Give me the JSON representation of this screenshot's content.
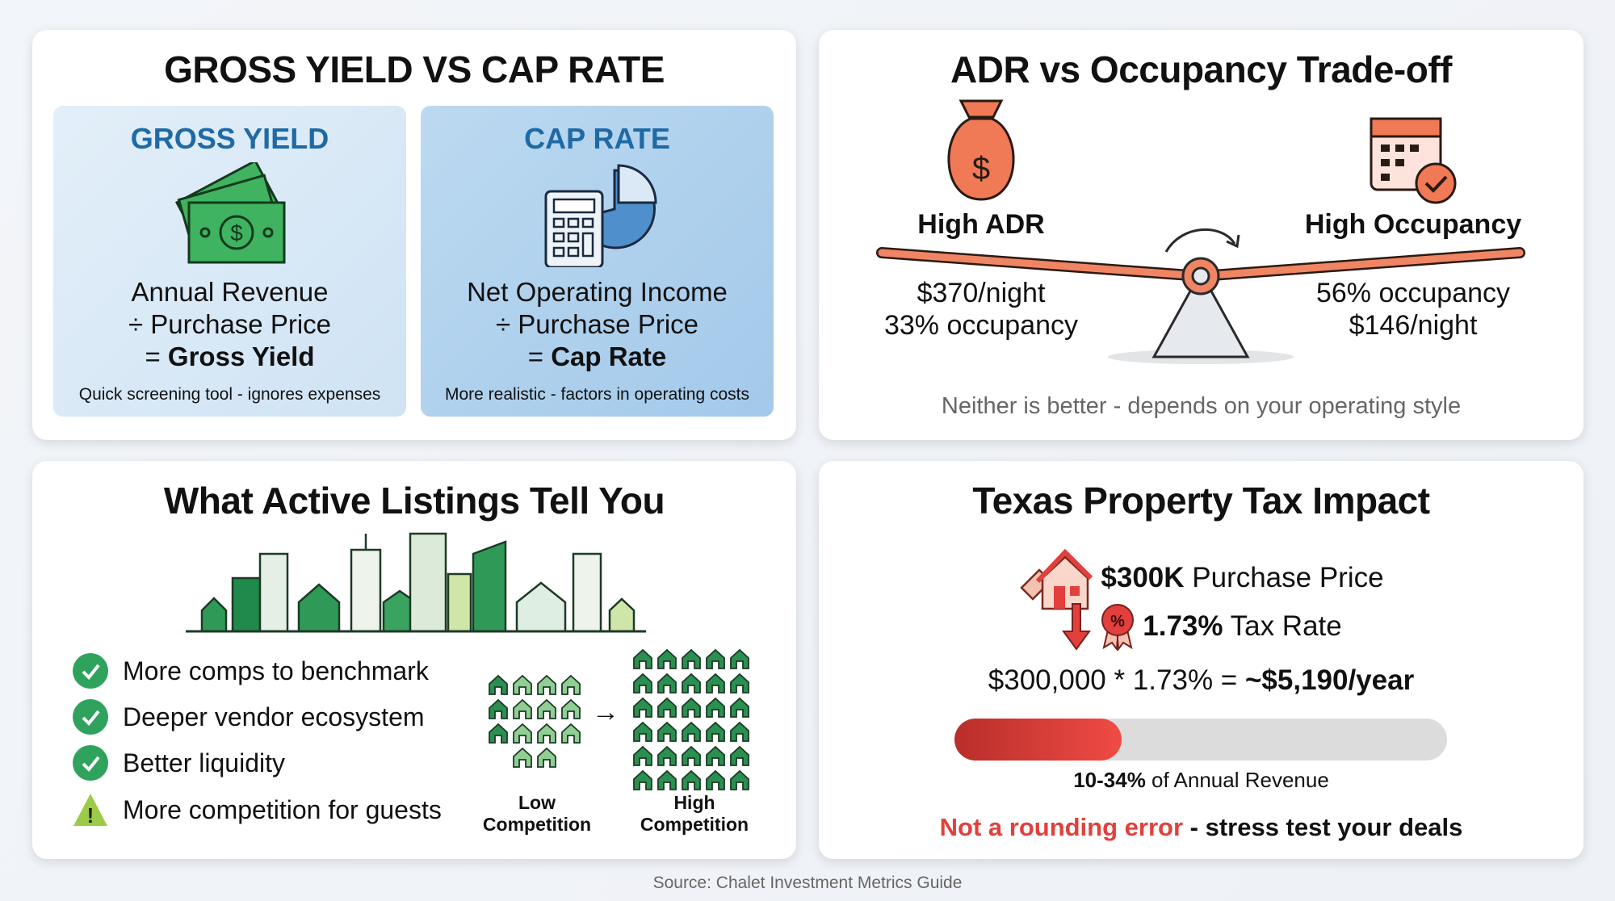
{
  "card1": {
    "title": "GROSS YIELD VS CAP RATE",
    "gross": {
      "heading": "GROSS YIELD",
      "line1": "Annual Revenue",
      "line2": "÷ Purchase Price",
      "line3_prefix": "= ",
      "line3_bold": "Gross Yield",
      "note": "Quick screening tool - ignores expenses",
      "icon": "money-bills-icon"
    },
    "cap": {
      "heading": "CAP RATE",
      "line1": "Net Operating Income",
      "line2": "÷ Purchase Price",
      "line3_prefix": "= ",
      "line3_bold": "Cap Rate",
      "note": "More realistic - factors in operating costs",
      "icon": "calculator-pie-chart-icon"
    }
  },
  "card2": {
    "title": "ADR vs Occupancy Trade-off",
    "left": {
      "label": "High ADR",
      "line1": "$370/night",
      "line2": "33% occupancy",
      "icon": "money-bag-icon"
    },
    "right": {
      "label": "High Occupancy",
      "line1": "56% occupancy",
      "line2": "$146/night",
      "icon": "calendar-check-icon"
    },
    "footer": "Neither is better - depends on your operating style"
  },
  "card3": {
    "title": "What Active Listings Tell You",
    "items": [
      {
        "text": "More comps to benchmark",
        "icon": "check-icon"
      },
      {
        "text": "Deeper vendor ecosystem",
        "icon": "check-icon"
      },
      {
        "text": "Better liquidity",
        "icon": "check-icon"
      },
      {
        "text": "More competition for guests",
        "icon": "warning-icon"
      }
    ],
    "low_label_1": "Low",
    "low_label_2": "Competition",
    "high_label_1": "High",
    "high_label_2": "Competition",
    "arrow": "→"
  },
  "card4": {
    "title": "Texas Property Tax Impact",
    "price_bold": "$300K",
    "price_rest": " Purchase Price",
    "rate_bold": "1.73%",
    "rate_rest": " Tax Rate",
    "formula_plain": "$300,000 * 1.73% = ",
    "formula_bold": "~$5,190/year",
    "bar_fill_percent": 34,
    "caption_bold": "10-34%",
    "caption_rest": " of Annual Revenue",
    "warning_red": "Not a rounding error",
    "warning_rest": " - stress test your deals",
    "colors": {
      "red": "#e2403c",
      "track": "#dcdcdc"
    }
  },
  "source": "Source: Chalet Investment Metrics Guide"
}
